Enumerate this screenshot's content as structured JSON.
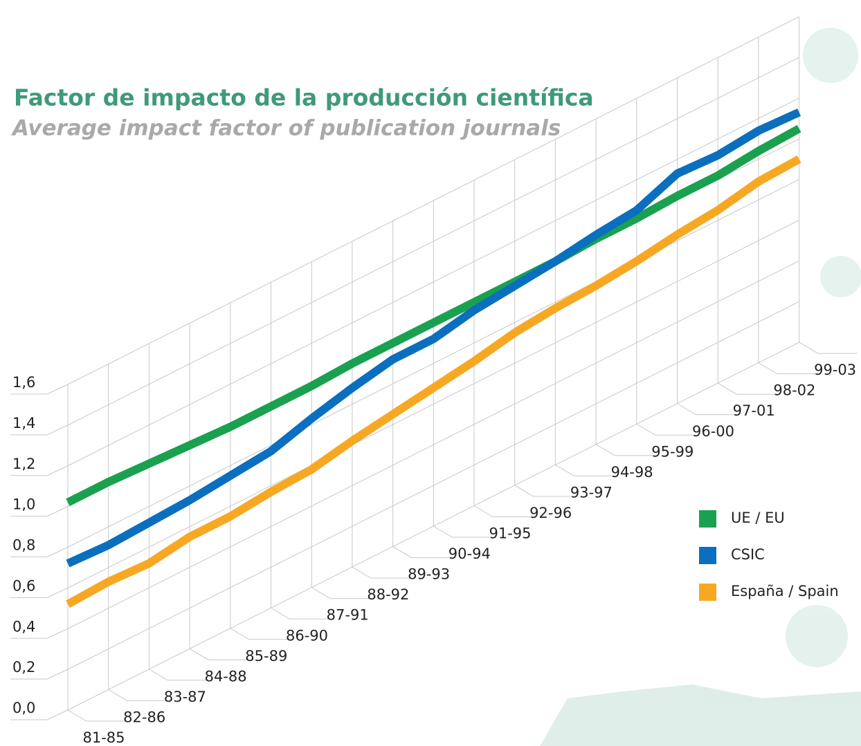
{
  "chart_data": {
    "type": "line",
    "title": "Factor de impacto de la producción científica",
    "subtitle": "Average impact factor of publication journals",
    "categories": [
      "81-85",
      "82-86",
      "83-87",
      "84-88",
      "85-89",
      "86-90",
      "87-91",
      "88-92",
      "89-93",
      "90-94",
      "91-95",
      "92-96",
      "93-97",
      "94-98",
      "95-99",
      "96-00",
      "97-01",
      "98-02",
      "99-03"
    ],
    "series": [
      {
        "name": "UE / EU",
        "color": "#1aa150",
        "values": [
          1.02,
          1.02,
          1.01,
          1.0,
          0.99,
          0.99,
          0.99,
          1.0,
          1.0,
          1.0,
          1.0,
          1.0,
          1.0,
          1.01,
          1.01,
          1.02,
          1.02,
          1.04,
          1.05
        ]
      },
      {
        "name": "CSIC",
        "color": "#0a6fbe",
        "values": [
          0.72,
          0.71,
          0.72,
          0.73,
          0.75,
          0.77,
          0.83,
          0.88,
          0.92,
          0.92,
          0.96,
          0.98,
          1.0,
          1.03,
          1.05,
          1.13,
          1.12,
          1.14,
          1.13
        ]
      },
      {
        "name": "España / Spain",
        "color": "#f7a823",
        "values": [
          0.52,
          0.53,
          0.52,
          0.55,
          0.55,
          0.57,
          0.58,
          0.62,
          0.65,
          0.68,
          0.71,
          0.75,
          0.77,
          0.78,
          0.8,
          0.83,
          0.85,
          0.89,
          0.9
        ]
      }
    ],
    "ylim": [
      0,
      1.6
    ],
    "yticks": [
      {
        "value": 0,
        "label": "0,0"
      },
      {
        "value": 0.2,
        "label": "0,2"
      },
      {
        "value": 0.4,
        "label": "0,4"
      },
      {
        "value": 0.6,
        "label": "0,6"
      },
      {
        "value": 0.8,
        "label": "0,8"
      },
      {
        "value": 1.0,
        "label": "1,0"
      },
      {
        "value": 1.2,
        "label": "1,2"
      },
      {
        "value": 1.4,
        "label": "1,4"
      },
      {
        "value": 1.6,
        "label": "1,6"
      }
    ],
    "grid": true
  }
}
